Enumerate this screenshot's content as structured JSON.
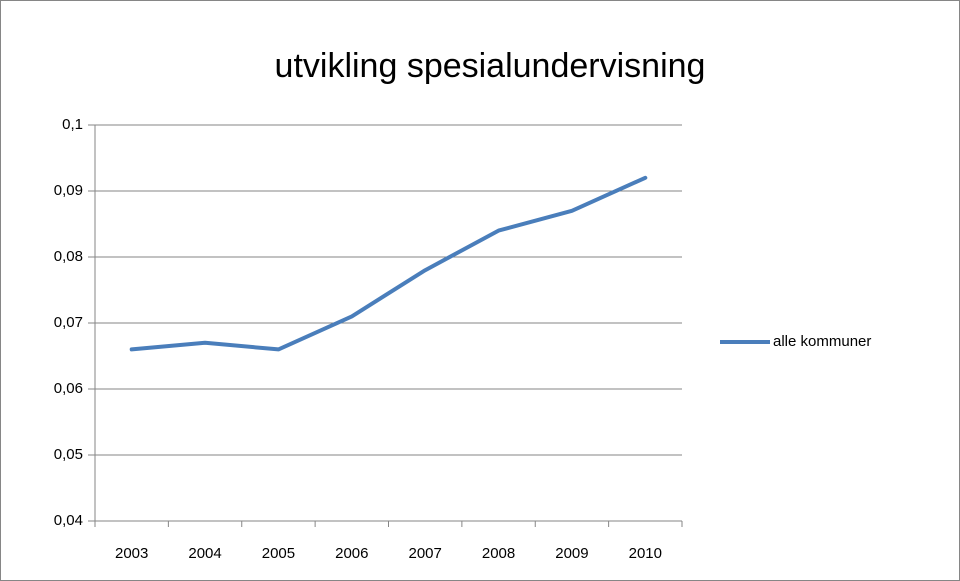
{
  "chart_data": {
    "type": "line",
    "title": "utvikling spesialundervisning",
    "categories": [
      "2003",
      "2004",
      "2005",
      "2006",
      "2007",
      "2008",
      "2009",
      "2010"
    ],
    "series": [
      {
        "name": "alle kommuner",
        "color": "#4a7ebb",
        "values": [
          0.066,
          0.067,
          0.066,
          0.071,
          0.078,
          0.084,
          0.087,
          0.092
        ]
      }
    ],
    "ylim": [
      0.04,
      0.1
    ],
    "yticks": [
      {
        "value": 0.04,
        "label": "0,04"
      },
      {
        "value": 0.05,
        "label": "0,05"
      },
      {
        "value": 0.06,
        "label": "0,06"
      },
      {
        "value": 0.07,
        "label": "0,07"
      },
      {
        "value": 0.08,
        "label": "0,08"
      },
      {
        "value": 0.09,
        "label": "0,09"
      },
      {
        "value": 0.1,
        "label": "0,1"
      }
    ],
    "grid": true,
    "legend": "right"
  }
}
